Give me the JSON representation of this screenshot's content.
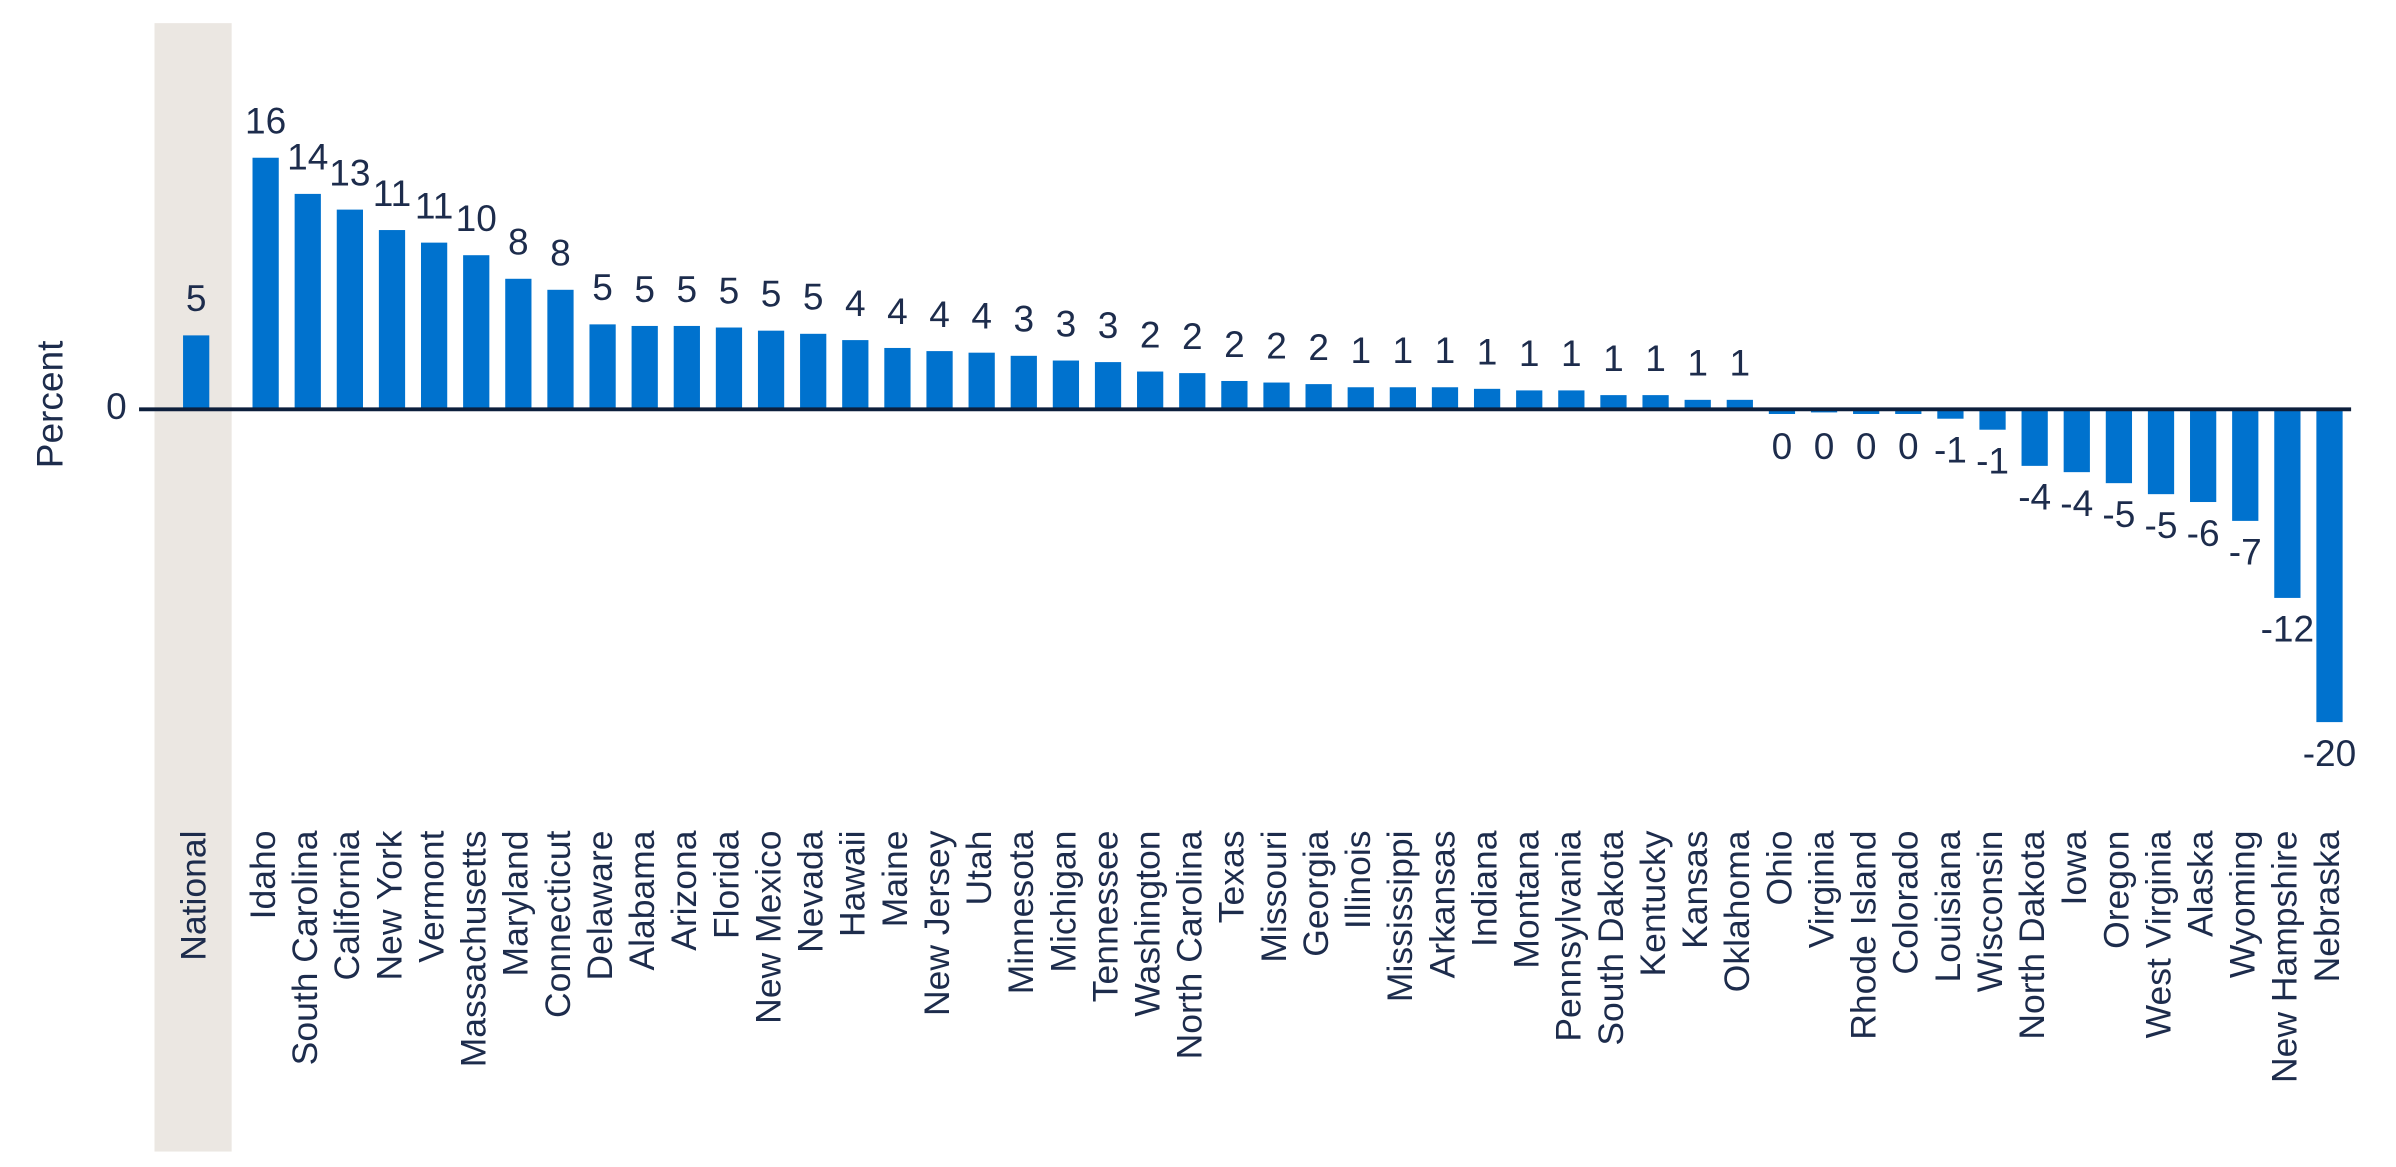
{
  "chart_data": {
    "type": "bar",
    "y_label": "Percent",
    "categories": [
      "National",
      "Idaho",
      "South Carolina",
      "California",
      "New York",
      "Vermont",
      "Massachusetts",
      "Maryland",
      "Connecticut",
      "Delaware",
      "Alabama",
      "Arizona",
      "Florida",
      "New Mexico",
      "Nevada",
      "Hawaii",
      "Maine",
      "New Jersey",
      "Utah",
      "Minnesota",
      "Michigan",
      "Tennessee",
      "Washington",
      "North Carolina",
      "Texas",
      "Missouri",
      "Georgia",
      "Illinois",
      "Mississippi",
      "Arkansas",
      "Indiana",
      "Montana",
      "Pennsylvania",
      "South Dakota",
      "Kentucky",
      "Kansas",
      "Oklahoma",
      "Ohio",
      "Virginia",
      "Rhode Island",
      "Colorado",
      "Louisiana",
      "Wisconsin",
      "North Dakota",
      "Iowa",
      "Oregon",
      "West Virginia",
      "Alaska",
      "Wyoming",
      "New Hampshire",
      "Nebraska"
    ],
    "values": [
      4.7,
      16.0,
      13.7,
      12.7,
      11.4,
      10.6,
      9.8,
      8.3,
      7.6,
      5.4,
      5.3,
      5.3,
      5.2,
      5.0,
      4.8,
      4.4,
      3.9,
      3.7,
      3.6,
      3.4,
      3.1,
      3.0,
      2.4,
      2.3,
      1.8,
      1.7,
      1.6,
      1.4,
      1.4,
      1.4,
      1.3,
      1.2,
      1.2,
      0.9,
      0.9,
      0.6,
      0.6,
      -0.3,
      -0.2,
      -0.3,
      -0.3,
      -0.6,
      -1.3,
      -3.6,
      -4.0,
      -4.7,
      -5.4,
      -5.9,
      -7.1,
      -12.0,
      -19.9
    ],
    "value_labels": [
      "5",
      "16",
      "14",
      "13",
      "11",
      "11",
      "10",
      "8",
      "8",
      "5",
      "5",
      "5",
      "5",
      "5",
      "5",
      "4",
      "4",
      "4",
      "4",
      "3",
      "3",
      "3",
      "2",
      "2",
      "2",
      "2",
      "2",
      "1",
      "1",
      "1",
      "1",
      "1",
      "1",
      "1",
      "1",
      "1",
      "1",
      "0",
      "0",
      "0",
      "0",
      "-1",
      "-1",
      "-4",
      "-4",
      "-5",
      "-5",
      "-6",
      "-7",
      "-12",
      "-20"
    ],
    "color": "#0072ce",
    "ylim": [
      -21,
      17
    ],
    "yticks": [
      0
    ]
  }
}
